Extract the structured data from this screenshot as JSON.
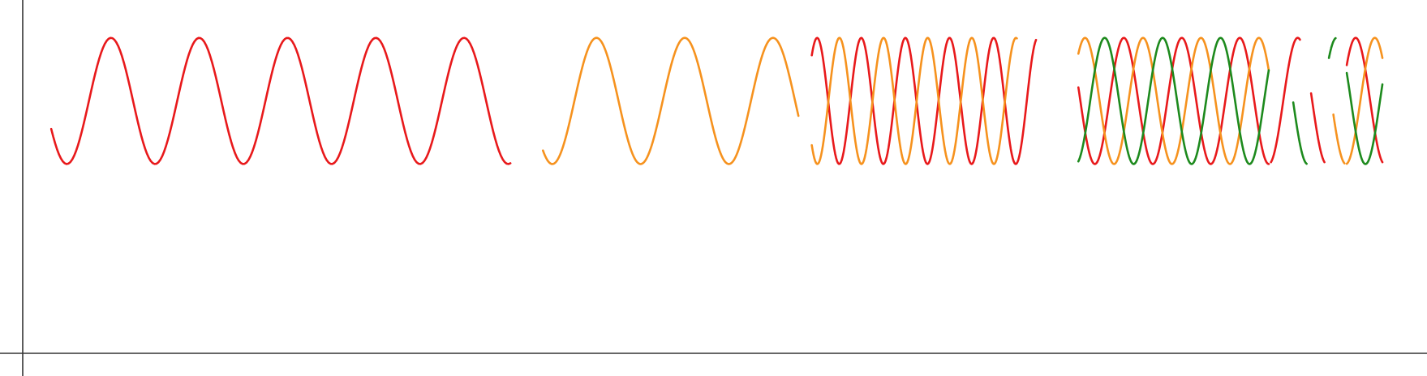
{
  "chart_data": {
    "type": "line",
    "title": "",
    "xlabel": "",
    "ylabel": "",
    "xlim": [
      0,
      31.5
    ],
    "ylim": [
      -4,
      1.6
    ],
    "grid": false,
    "legend": "none",
    "colors": {
      "red": "#e8191b",
      "orange": "#f6921e",
      "green": "#1d8a1d",
      "axis": "#333333"
    },
    "series": [
      {
        "color": "red",
        "x_start": 0.64,
        "x_end": 10.94,
        "phase": 0.0,
        "period": 1.98
      },
      {
        "color": "orange",
        "x_start": 11.67,
        "x_end": 17.4,
        "phase": 0.99,
        "period": 1.98
      },
      {
        "color": "red",
        "x_start": 17.7,
        "x_end": 22.73,
        "phase": 0.0,
        "period": 0.99
      },
      {
        "color": "orange",
        "x_start": 17.7,
        "x_end": 22.3,
        "phase": 0.5,
        "period": 0.99
      },
      {
        "color": "red",
        "x_start": 23.68,
        "x_end": 27.95,
        "phase": 0.0,
        "period": 1.3
      },
      {
        "color": "orange",
        "x_start": 23.68,
        "x_end": 27.95,
        "phase": 0.43,
        "period": 1.3
      },
      {
        "color": "green",
        "x_start": 23.68,
        "x_end": 27.95,
        "phase": 0.87,
        "period": 1.3
      },
      {
        "color": "red",
        "x_start": 28.0,
        "x_end": 28.65,
        "phase": 0.0,
        "period": 1.3
      },
      {
        "color": "green",
        "x_start": 28.5,
        "x_end": 28.8,
        "phase": 0.87,
        "period": 1.3
      },
      {
        "color": "red",
        "x_start": 28.9,
        "x_end": 29.2,
        "phase": 0.0,
        "period": 1.3
      },
      {
        "color": "green",
        "x_start": 29.3,
        "x_end": 29.45,
        "phase": 0.87,
        "period": 1.3
      },
      {
        "color": "orange",
        "x_start": 29.4,
        "x_end": 29.65,
        "phase": 0.43,
        "period": 1.3
      },
      {
        "color": "red",
        "x_start": 29.7,
        "x_end": 30.5,
        "phase": 0.0,
        "period": 1.3
      },
      {
        "color": "orange",
        "x_start": 29.7,
        "x_end": 30.5,
        "phase": 0.43,
        "period": 1.3
      },
      {
        "color": "green",
        "x_start": 29.7,
        "x_end": 30.5,
        "phase": 0.87,
        "period": 1.3
      }
    ]
  }
}
